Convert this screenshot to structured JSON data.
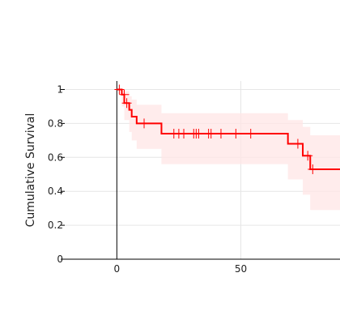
{
  "chart_data": {
    "type": "line",
    "title": "",
    "xlabel": "",
    "ylabel": "Cumulative Survival",
    "xlim": [
      -21,
      90
    ],
    "ylim": [
      0,
      1.05
    ],
    "x_ticks": [
      0,
      50
    ],
    "y_ticks": [
      0,
      0.2,
      0.4,
      0.6,
      0.8,
      1
    ],
    "grid": true,
    "legend": "none",
    "series": [
      {
        "step_points": [
          {
            "x": 0,
            "y": 1.0
          },
          {
            "x": 2,
            "y": 0.97
          },
          {
            "x": 3,
            "y": 0.92
          },
          {
            "x": 5,
            "y": 0.88
          },
          {
            "x": 6,
            "y": 0.84
          },
          {
            "x": 8,
            "y": 0.8
          },
          {
            "x": 18,
            "y": 0.74
          },
          {
            "x": 69,
            "y": 0.68
          },
          {
            "x": 75,
            "y": 0.61
          },
          {
            "x": 78,
            "y": 0.53
          },
          {
            "x": 90,
            "y": 0.53
          }
        ],
        "ci_upper": [
          {
            "x": 0,
            "y": 1.0
          },
          {
            "x": 2,
            "y": 1.0
          },
          {
            "x": 3,
            "y": 0.99
          },
          {
            "x": 5,
            "y": 0.96
          },
          {
            "x": 6,
            "y": 0.94
          },
          {
            "x": 8,
            "y": 0.91
          },
          {
            "x": 18,
            "y": 0.86
          },
          {
            "x": 69,
            "y": 0.82
          },
          {
            "x": 75,
            "y": 0.78
          },
          {
            "x": 78,
            "y": 0.73
          },
          {
            "x": 90,
            "y": 0.73
          }
        ],
        "ci_lower": [
          {
            "x": 0,
            "y": 1.0
          },
          {
            "x": 2,
            "y": 0.9
          },
          {
            "x": 3,
            "y": 0.82
          },
          {
            "x": 5,
            "y": 0.75
          },
          {
            "x": 6,
            "y": 0.7
          },
          {
            "x": 8,
            "y": 0.65
          },
          {
            "x": 18,
            "y": 0.56
          },
          {
            "x": 69,
            "y": 0.47
          },
          {
            "x": 75,
            "y": 0.38
          },
          {
            "x": 78,
            "y": 0.29
          },
          {
            "x": 90,
            "y": 0.29
          }
        ],
        "censored": [
          {
            "x": 1,
            "y": 1.0
          },
          {
            "x": 3,
            "y": 0.97
          },
          {
            "x": 4,
            "y": 0.92
          },
          {
            "x": 11,
            "y": 0.8
          },
          {
            "x": 23,
            "y": 0.74
          },
          {
            "x": 25,
            "y": 0.74
          },
          {
            "x": 27,
            "y": 0.74
          },
          {
            "x": 31,
            "y": 0.74
          },
          {
            "x": 32,
            "y": 0.74
          },
          {
            "x": 33,
            "y": 0.74
          },
          {
            "x": 37,
            "y": 0.74
          },
          {
            "x": 38,
            "y": 0.74
          },
          {
            "x": 42,
            "y": 0.74
          },
          {
            "x": 48,
            "y": 0.74
          },
          {
            "x": 54,
            "y": 0.74
          },
          {
            "x": 73,
            "y": 0.68
          },
          {
            "x": 77,
            "y": 0.61
          },
          {
            "x": 79,
            "y": 0.53
          }
        ]
      }
    ]
  },
  "colors": {
    "line": "#ff0000",
    "ci_fill": "#ffe5e5",
    "grid": "#e6e6e6",
    "axis": "#000000"
  }
}
